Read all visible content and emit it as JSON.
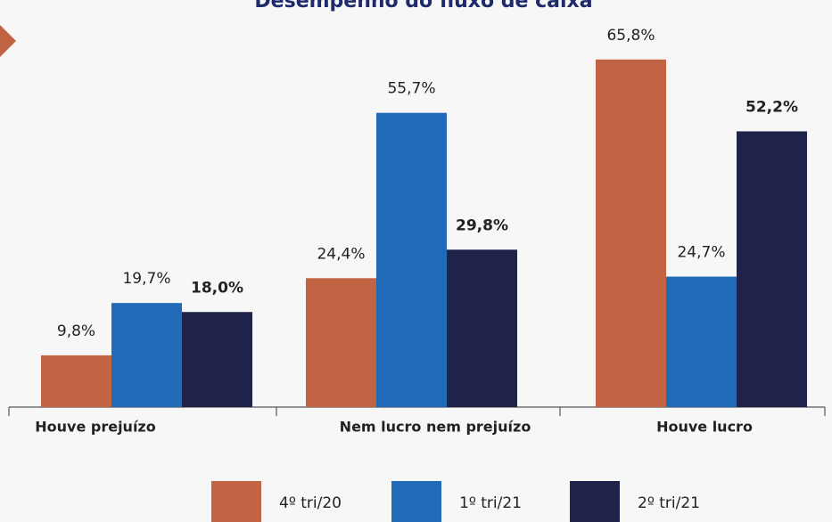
{
  "chart_data": {
    "type": "bar",
    "title": "Desempenho do fluxo de caixa",
    "categories": [
      "Houve prejuízo",
      "Nem lucro nem prejuízo",
      "Houve lucro"
    ],
    "series": [
      {
        "name": "4º tri/20",
        "color": "#c26443",
        "values": [
          9.8,
          24.4,
          65.8
        ],
        "value_labels": [
          "9,8%",
          "24,4%",
          "65,8%"
        ]
      },
      {
        "name": "1º tri/21",
        "color": "#216ab7",
        "values": [
          19.7,
          55.7,
          24.7
        ],
        "value_labels": [
          "19,7%",
          "55,7%",
          "24,7%"
        ]
      },
      {
        "name": "2º tri/21",
        "color": "#1f2349",
        "values": [
          18.0,
          29.8,
          52.2
        ],
        "value_labels": [
          "18,0%",
          "29,8%",
          "52,2%"
        ]
      }
    ]
  }
}
